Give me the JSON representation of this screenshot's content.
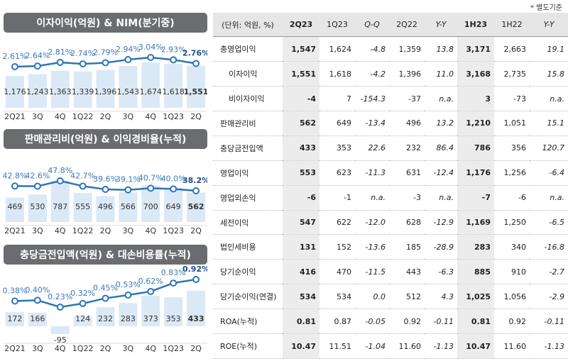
{
  "chart_data": [
    {
      "type": "combo",
      "title": "이자이익(억원) & NIM(분기중)",
      "categories": [
        "2Q21",
        "3Q",
        "4Q",
        "1Q22",
        "2Q",
        "3Q",
        "4Q",
        "1Q23",
        "2Q"
      ],
      "series": [
        {
          "type": "bar",
          "color": "#dbe9f6",
          "values": [
            1176,
            1243,
            1363,
            1339,
            1396,
            1543,
            1674,
            1618,
            1551
          ],
          "value_labels": [
            "1,176",
            "1,243",
            "1,363",
            "1,339",
            "1,396",
            "1,543",
            "1,674",
            "1,618",
            "1,551"
          ]
        },
        {
          "type": "line",
          "color": "#2e75b6",
          "values": [
            2.61,
            2.64,
            2.81,
            2.74,
            2.79,
            2.94,
            3.04,
            2.93,
            2.76
          ],
          "value_labels": [
            "2.61%",
            "2.64%",
            "2.81%",
            "2.74%",
            "2.79%",
            "2.94%",
            "3.04%",
            "2.93%",
            "2.76%"
          ]
        }
      ]
    },
    {
      "type": "combo",
      "title": "판매관리비(억원) & 이익경비율(누적)",
      "categories": [
        "2Q21",
        "3Q",
        "4Q",
        "1Q22",
        "2Q",
        "3Q",
        "4Q",
        "1Q23",
        "2Q"
      ],
      "series": [
        {
          "type": "bar",
          "color": "#dbe9f6",
          "values": [
            469,
            530,
            787,
            555,
            496,
            566,
            700,
            649,
            562
          ]
        },
        {
          "type": "line",
          "color": "#2e75b6",
          "values": [
            42.8,
            42.6,
            47.8,
            42.7,
            39.6,
            39.1,
            40.7,
            40.0,
            38.2
          ],
          "value_labels": [
            "42.8%",
            "42.6%",
            "47.8%",
            "42.7%",
            "39.6%",
            "39.1%",
            "40.7%",
            "40.0%",
            "38.2%"
          ]
        }
      ]
    },
    {
      "type": "combo",
      "title": "충당금전입액(억원) & 대손비용률(누적)",
      "categories": [
        "2Q21",
        "3Q",
        "4Q",
        "1Q22",
        "2Q",
        "3Q",
        "4Q",
        "1Q23",
        "2Q"
      ],
      "series": [
        {
          "type": "bar",
          "color": "#dbe9f6",
          "values": [
            172,
            166,
            -95,
            124,
            232,
            283,
            373,
            353,
            433
          ]
        },
        {
          "type": "line",
          "color": "#2e75b6",
          "values": [
            0.38,
            0.4,
            0.23,
            0.32,
            0.45,
            0.53,
            0.62,
            0.83,
            0.92
          ],
          "value_labels": [
            "0.38%",
            "0.40%",
            "0.23%",
            "0.32%",
            "0.45%",
            "0.53%",
            "0.62%",
            "0.83%",
            "0.92%"
          ]
        }
      ]
    }
  ],
  "table": {
    "note": "* 별도기준",
    "columns": [
      "(단위: 억원, %)",
      "2Q23",
      "1Q23",
      "Q-Q",
      "2Q22",
      "Y-Y",
      "1H23",
      "1H22",
      "Y-Y"
    ],
    "rows": [
      [
        "총영업이익",
        "1,547",
        "1,624",
        "-4.8",
        "1,359",
        "13.8",
        "3,171",
        "2,663",
        "19.1"
      ],
      [
        "이자이익",
        "1,551",
        "1,618",
        "-4.2",
        "1,396",
        "11.0",
        "3,168",
        "2,735",
        "15.8"
      ],
      [
        "비이자이익",
        "-4",
        "7",
        "-154.3",
        "-37",
        "n.a.",
        "3",
        "-73",
        "n.a."
      ],
      [
        "판매관리비",
        "562",
        "649",
        "-13.4",
        "496",
        "13.2",
        "1,210",
        "1,051",
        "15.1"
      ],
      [
        "충당금전입액",
        "433",
        "353",
        "22.6",
        "232",
        "86.4",
        "786",
        "356",
        "120.7"
      ],
      [
        "영업이익",
        "553",
        "623",
        "-11.3",
        "631",
        "-12.4",
        "1,176",
        "1,256",
        "-6.4"
      ],
      [
        "영업외손익",
        "-6",
        "-1",
        "n.a.",
        "-3",
        "n.a.",
        "-7",
        "-6",
        "n.a."
      ],
      [
        "세전이익",
        "547",
        "622",
        "-12.0",
        "628",
        "-12.9",
        "1,169",
        "1,250",
        "-6.5"
      ],
      [
        "법인세비용",
        "131",
        "152",
        "-13.6",
        "185",
        "-28.9",
        "283",
        "340",
        "-16.8"
      ],
      [
        "당기순이익",
        "416",
        "470",
        "-11.5",
        "443",
        "-6.3",
        "885",
        "910",
        "-2.7"
      ],
      [
        "당기순이익(연결)",
        "534",
        "534",
        "0.0",
        "512",
        "4.3",
        "1,025",
        "1,056",
        "-2.9"
      ],
      [
        "ROA(누적)",
        "0.81",
        "0.87",
        "-0.05",
        "0.92",
        "-0.11",
        "0.81",
        "0.92",
        "-0.11"
      ],
      [
        "ROE(누적)",
        "10.47",
        "11.51",
        "-1.04",
        "11.60",
        "-1.13",
        "10.47",
        "11.60",
        "-1.13"
      ]
    ]
  }
}
